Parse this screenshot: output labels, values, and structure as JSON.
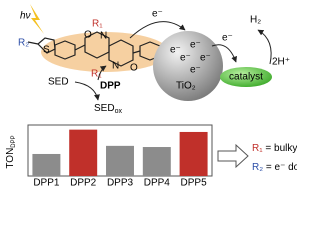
{
  "diagram": {
    "light": "hν",
    "r1_top": "R₁",
    "r1_bottom": "R₁",
    "r2": "R₂",
    "dpp": "DPP",
    "n_top": "N",
    "n_bottom": "N",
    "o_top": "O",
    "o_bottom": "O",
    "s": "S",
    "p": "P",
    "sed": "SED",
    "sed_ox": "SED",
    "sed_ox_sub": "ox",
    "electron_top": "e⁻",
    "electron_cat": "e⁻",
    "electrons_inside": [
      "e⁻",
      "e⁻",
      "e⁻",
      "e⁻",
      "e⁻"
    ],
    "tio2": "TiO₂",
    "catalyst": "catalyst",
    "h2": "H₂",
    "protons": "2H⁺",
    "legend": [
      {
        "symbol": "R₁",
        "text": " = bulky"
      },
      {
        "symbol": "R₂",
        "text": " = e⁻ donating"
      }
    ]
  },
  "chart_data": {
    "type": "bar",
    "y_label": "TON",
    "y_label_sub": "DPP",
    "categories": [
      "DPP1",
      "DPP2",
      "DPP3",
      "DPP4",
      "DPP5"
    ],
    "values": [
      95,
      200,
      130,
      125,
      190
    ],
    "colors": [
      "#8c8c8c",
      "#c0302a",
      "#8c8c8c",
      "#8c8c8c",
      "#c0302a"
    ],
    "ylim": [
      0,
      220
    ]
  }
}
